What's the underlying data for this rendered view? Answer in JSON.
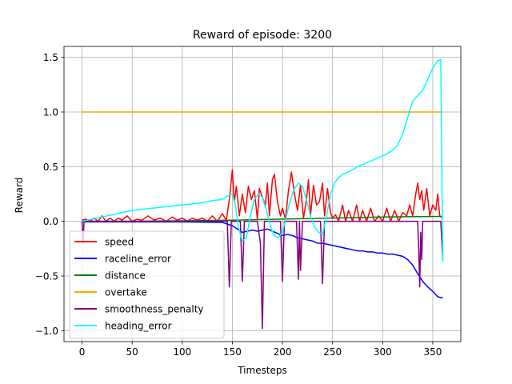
{
  "chart_data": {
    "type": "line",
    "title": "Reward of episode: 3200",
    "xlabel": "Timesteps",
    "ylabel": "Reward",
    "xlim": [
      -18,
      378
    ],
    "ylim": [
      -1.1,
      1.6
    ],
    "xticks": [
      0,
      50,
      100,
      150,
      200,
      250,
      300,
      350
    ],
    "yticks": [
      -1.0,
      -0.5,
      0.0,
      0.5,
      1.0,
      1.5
    ],
    "xtick_labels": [
      "0",
      "50",
      "100",
      "150",
      "200",
      "250",
      "300",
      "350"
    ],
    "ytick_labels": [
      "−1.0",
      "−0.5",
      "0.0",
      "0.5",
      "1.0",
      "1.5"
    ],
    "grid": true,
    "legend_position": "lower-left",
    "series": [
      {
        "name": "speed",
        "color": "#ff0000",
        "points": [
          [
            0,
            0.01
          ],
          [
            4,
            0.02
          ],
          [
            8,
            0.0
          ],
          [
            12,
            0.03
          ],
          [
            16,
            0.0
          ],
          [
            20,
            0.05
          ],
          [
            24,
            0.0
          ],
          [
            28,
            0.03
          ],
          [
            32,
            0.0
          ],
          [
            36,
            0.03
          ],
          [
            40,
            0.01
          ],
          [
            45,
            0.05
          ],
          [
            50,
            0.0
          ],
          [
            55,
            0.02
          ],
          [
            60,
            0.01
          ],
          [
            66,
            0.05
          ],
          [
            72,
            0.01
          ],
          [
            78,
            0.03
          ],
          [
            84,
            0.0
          ],
          [
            90,
            0.04
          ],
          [
            95,
            0.01
          ],
          [
            100,
            0.03
          ],
          [
            105,
            0.0
          ],
          [
            110,
            0.03
          ],
          [
            115,
            0.01
          ],
          [
            120,
            0.03
          ],
          [
            125,
            0.0
          ],
          [
            130,
            0.05
          ],
          [
            135,
            0.0
          ],
          [
            140,
            0.07
          ],
          [
            144,
            0.01
          ],
          [
            147,
            0.2
          ],
          [
            150,
            0.47
          ],
          [
            152,
            0.18
          ],
          [
            154,
            0.32
          ],
          [
            157,
            0.05
          ],
          [
            160,
            0.25
          ],
          [
            163,
            0.08
          ],
          [
            166,
            0.32
          ],
          [
            169,
            0.2
          ],
          [
            172,
            0.28
          ],
          [
            175,
            0.02
          ],
          [
            177,
            0.3
          ],
          [
            180,
            0.22
          ],
          [
            183,
            0.15
          ],
          [
            185,
            0.35
          ],
          [
            187,
            0.05
          ],
          [
            190,
            0.38
          ],
          [
            192,
            0.43
          ],
          [
            195,
            0.18
          ],
          [
            198,
            0.05
          ],
          [
            200,
            0.12
          ],
          [
            203,
            0.02
          ],
          [
            206,
            0.28
          ],
          [
            209,
            0.45
          ],
          [
            212,
            0.25
          ],
          [
            215,
            0.1
          ],
          [
            218,
            0.33
          ],
          [
            221,
            0.03
          ],
          [
            224,
            0.2
          ],
          [
            226,
            0.38
          ],
          [
            228,
            0.05
          ],
          [
            231,
            0.33
          ],
          [
            234,
            0.15
          ],
          [
            237,
            0.18
          ],
          [
            240,
            0.35
          ],
          [
            242,
            0.05
          ],
          [
            245,
            0.3
          ],
          [
            248,
            0.08
          ],
          [
            250,
            0.03
          ],
          [
            253,
            0.06
          ],
          [
            256,
            0.0
          ],
          [
            260,
            0.15
          ],
          [
            263,
            0.0
          ],
          [
            266,
            0.1
          ],
          [
            270,
            0.0
          ],
          [
            274,
            0.15
          ],
          [
            277,
            0.0
          ],
          [
            280,
            0.1
          ],
          [
            284,
            0.0
          ],
          [
            288,
            0.12
          ],
          [
            292,
            0.0
          ],
          [
            296,
            0.05
          ],
          [
            300,
            0.0
          ],
          [
            304,
            0.12
          ],
          [
            308,
            0.0
          ],
          [
            312,
            0.1
          ],
          [
            316,
            0.0
          ],
          [
            320,
            0.08
          ],
          [
            324,
            0.05
          ],
          [
            327,
            0.15
          ],
          [
            330,
            0.05
          ],
          [
            333,
            0.25
          ],
          [
            335,
            0.35
          ],
          [
            337,
            0.2
          ],
          [
            339,
            0.28
          ],
          [
            341,
            0.1
          ],
          [
            344,
            0.3
          ],
          [
            347,
            0.05
          ],
          [
            350,
            0.15
          ],
          [
            353,
            0.1
          ],
          [
            355,
            0.25
          ],
          [
            357,
            0.05
          ],
          [
            360,
            0.03
          ]
        ]
      },
      {
        "name": "raceline_error",
        "color": "#0000ff",
        "points": [
          [
            0,
            -0.005
          ],
          [
            50,
            -0.005
          ],
          [
            100,
            -0.005
          ],
          [
            140,
            -0.01
          ],
          [
            150,
            -0.04
          ],
          [
            155,
            -0.07
          ],
          [
            160,
            -0.1
          ],
          [
            165,
            -0.09
          ],
          [
            170,
            -0.08
          ],
          [
            175,
            -0.09
          ],
          [
            180,
            -0.08
          ],
          [
            185,
            -0.07
          ],
          [
            190,
            -0.09
          ],
          [
            195,
            -0.11
          ],
          [
            200,
            -0.13
          ],
          [
            205,
            -0.12
          ],
          [
            210,
            -0.13
          ],
          [
            215,
            -0.15
          ],
          [
            220,
            -0.16
          ],
          [
            225,
            -0.17
          ],
          [
            230,
            -0.18
          ],
          [
            235,
            -0.2
          ],
          [
            240,
            -0.2
          ],
          [
            245,
            -0.21
          ],
          [
            250,
            -0.22
          ],
          [
            255,
            -0.23
          ],
          [
            260,
            -0.24
          ],
          [
            265,
            -0.25
          ],
          [
            270,
            -0.26
          ],
          [
            275,
            -0.27
          ],
          [
            280,
            -0.27
          ],
          [
            285,
            -0.28
          ],
          [
            290,
            -0.28
          ],
          [
            295,
            -0.29
          ],
          [
            300,
            -0.29
          ],
          [
            305,
            -0.3
          ],
          [
            310,
            -0.3
          ],
          [
            315,
            -0.31
          ],
          [
            320,
            -0.32
          ],
          [
            325,
            -0.35
          ],
          [
            330,
            -0.4
          ],
          [
            335,
            -0.48
          ],
          [
            340,
            -0.55
          ],
          [
            345,
            -0.6
          ],
          [
            350,
            -0.64
          ],
          [
            355,
            -0.69
          ],
          [
            360,
            -0.7
          ]
        ]
      },
      {
        "name": "distance",
        "color": "#008000",
        "points": [
          [
            0,
            0.0
          ],
          [
            50,
            0.0
          ],
          [
            100,
            0.005
          ],
          [
            150,
            0.01
          ],
          [
            200,
            0.02
          ],
          [
            250,
            0.03
          ],
          [
            300,
            0.04
          ],
          [
            360,
            0.045
          ]
        ]
      },
      {
        "name": "overtake",
        "color": "#ffa500",
        "points": [
          [
            0,
            1.0
          ],
          [
            360,
            1.0
          ]
        ]
      },
      {
        "name": "smoothness_penalty",
        "color": "#800080",
        "points": [
          [
            0,
            0.0
          ],
          [
            1,
            -0.2
          ],
          [
            2,
            0.0
          ],
          [
            145,
            0.0
          ],
          [
            147,
            -0.6
          ],
          [
            149,
            0.0
          ],
          [
            158,
            0.0
          ],
          [
            160,
            -0.55
          ],
          [
            162,
            0.0
          ],
          [
            175,
            0.0
          ],
          [
            178,
            -0.2
          ],
          [
            180,
            -0.98
          ],
          [
            182,
            0.0
          ],
          [
            198,
            0.0
          ],
          [
            200,
            -0.55
          ],
          [
            202,
            0.0
          ],
          [
            214,
            0.0
          ],
          [
            216,
            -0.53
          ],
          [
            217,
            0.0
          ],
          [
            218,
            -0.45
          ],
          [
            220,
            0.0
          ],
          [
            238,
            0.0
          ],
          [
            240,
            -0.57
          ],
          [
            242,
            0.0
          ],
          [
            335,
            0.0
          ],
          [
            336,
            -0.25
          ],
          [
            337,
            -0.6
          ],
          [
            338,
            -0.1
          ],
          [
            339,
            -0.35
          ],
          [
            340,
            0.0
          ],
          [
            358,
            0.0
          ],
          [
            360,
            -0.35
          ]
        ]
      },
      {
        "name": "heading_error",
        "color": "#00ffff",
        "points": [
          [
            0,
            0.0
          ],
          [
            10,
            0.02
          ],
          [
            20,
            0.04
          ],
          [
            30,
            0.06
          ],
          [
            40,
            0.08
          ],
          [
            50,
            0.1
          ],
          [
            60,
            0.11
          ],
          [
            70,
            0.12
          ],
          [
            80,
            0.13
          ],
          [
            90,
            0.14
          ],
          [
            100,
            0.15
          ],
          [
            110,
            0.16
          ],
          [
            120,
            0.17
          ],
          [
            130,
            0.19
          ],
          [
            140,
            0.2
          ],
          [
            145,
            0.23
          ],
          [
            150,
            0.25
          ],
          [
            153,
            0.15
          ],
          [
            156,
            -0.05
          ],
          [
            160,
            -0.18
          ],
          [
            164,
            -0.15
          ],
          [
            168,
            0.05
          ],
          [
            172,
            0.2
          ],
          [
            176,
            0.25
          ],
          [
            180,
            0.22
          ],
          [
            184,
            0.1
          ],
          [
            188,
            -0.05
          ],
          [
            192,
            -0.13
          ],
          [
            196,
            -0.15
          ],
          [
            200,
            -0.1
          ],
          [
            204,
            0.05
          ],
          [
            208,
            0.2
          ],
          [
            212,
            0.3
          ],
          [
            216,
            0.35
          ],
          [
            220,
            0.32
          ],
          [
            224,
            0.2
          ],
          [
            228,
            0.05
          ],
          [
            232,
            -0.05
          ],
          [
            236,
            -0.1
          ],
          [
            240,
            -0.12
          ],
          [
            244,
            0.05
          ],
          [
            248,
            0.25
          ],
          [
            252,
            0.35
          ],
          [
            256,
            0.4
          ],
          [
            260,
            0.43
          ],
          [
            265,
            0.45
          ],
          [
            270,
            0.47
          ],
          [
            275,
            0.5
          ],
          [
            280,
            0.52
          ],
          [
            285,
            0.54
          ],
          [
            290,
            0.56
          ],
          [
            295,
            0.58
          ],
          [
            300,
            0.6
          ],
          [
            305,
            0.62
          ],
          [
            310,
            0.65
          ],
          [
            315,
            0.7
          ],
          [
            320,
            0.8
          ],
          [
            325,
            0.95
          ],
          [
            330,
            1.1
          ],
          [
            335,
            1.15
          ],
          [
            340,
            1.2
          ],
          [
            345,
            1.3
          ],
          [
            350,
            1.4
          ],
          [
            355,
            1.47
          ],
          [
            358,
            1.48
          ],
          [
            360,
            -0.37
          ]
        ]
      }
    ]
  }
}
